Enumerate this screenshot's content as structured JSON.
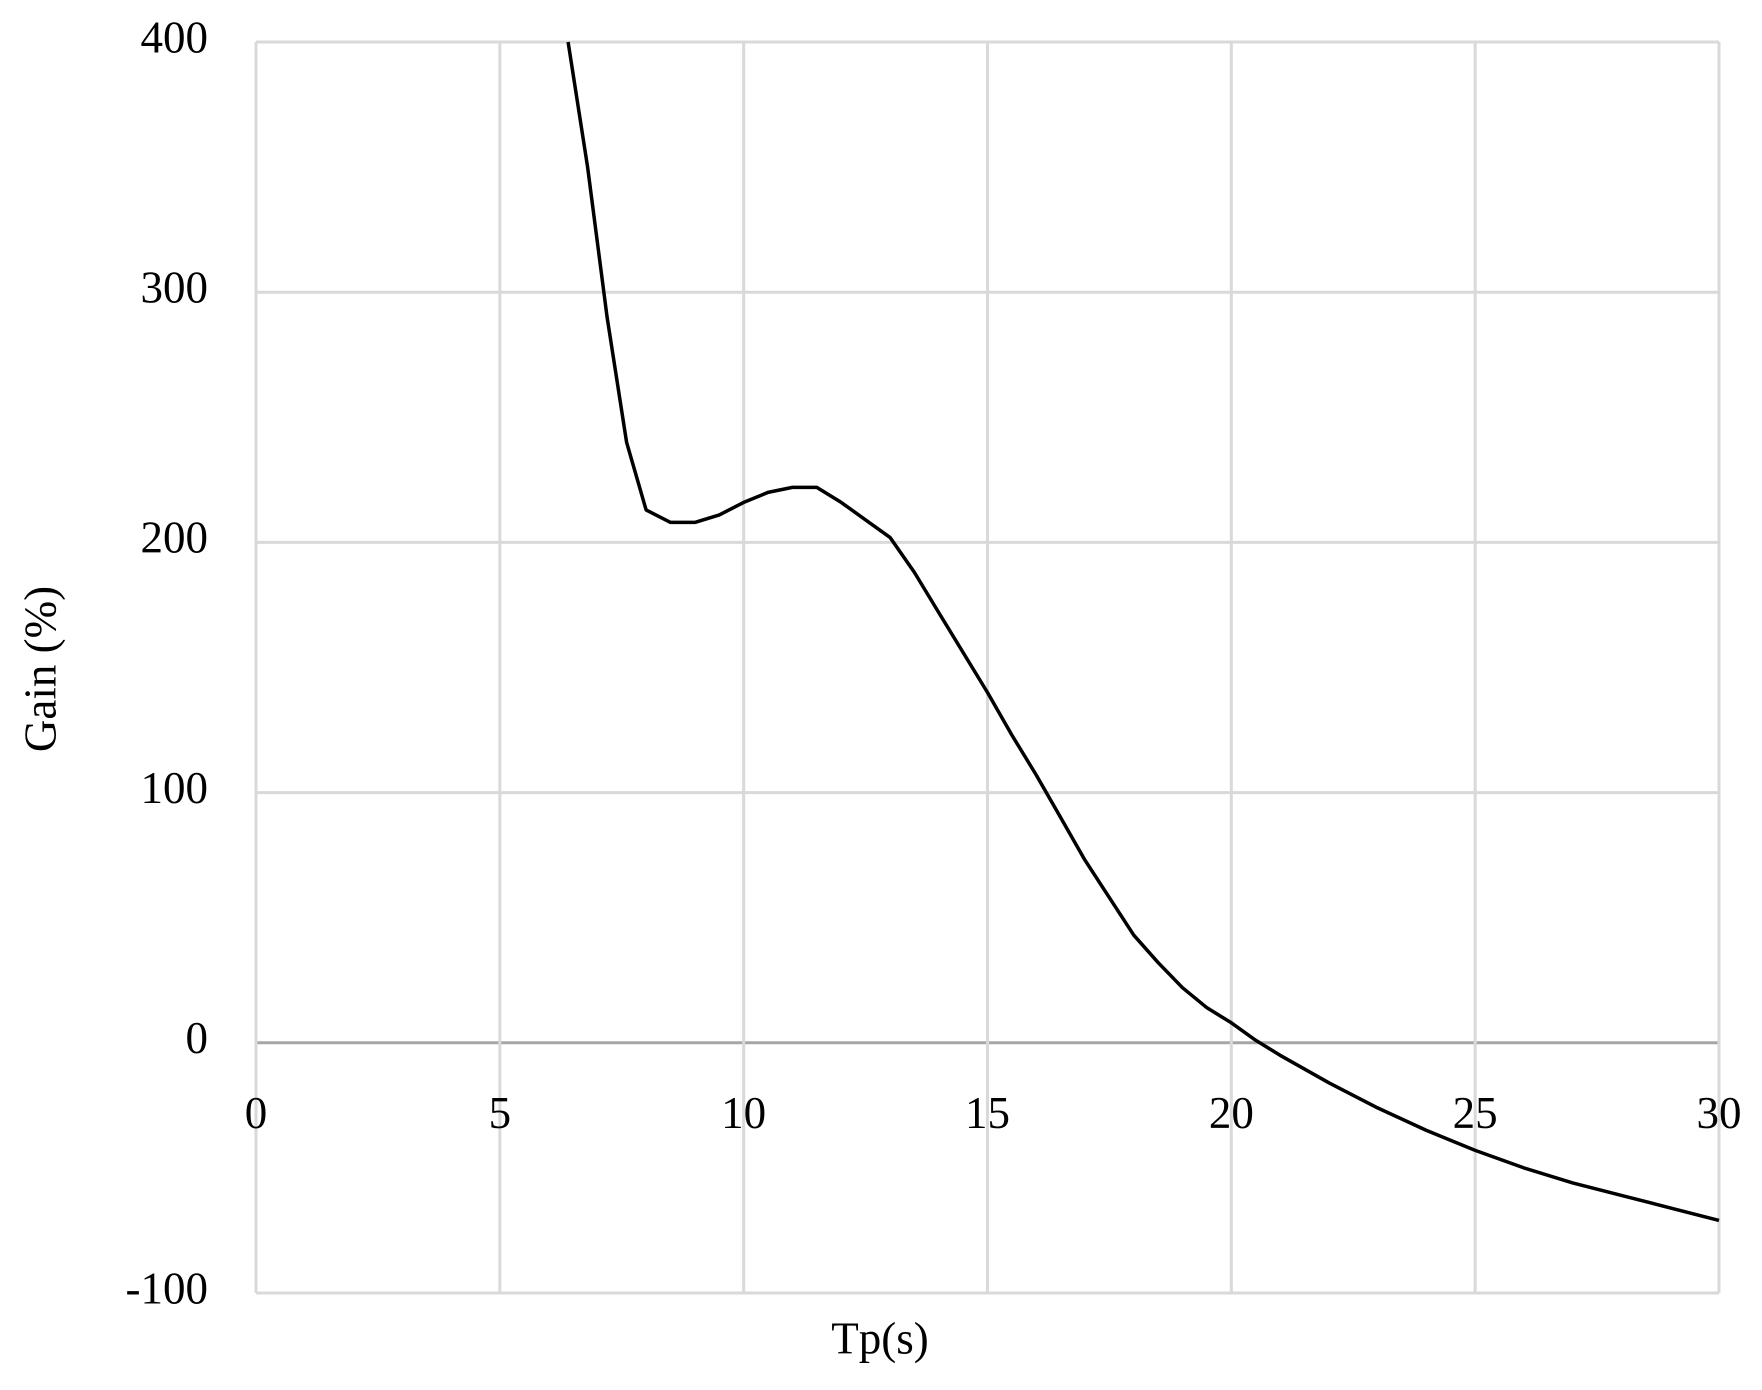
{
  "chart_data": {
    "type": "line",
    "x_label": "Tp(s)",
    "y_label": "Gain (%)",
    "x": [
      6.4,
      6.8,
      7.2,
      7.6,
      8.0,
      8.5,
      9.0,
      9.5,
      10,
      10.5,
      11,
      11.5,
      12,
      12.5,
      13,
      13.5,
      14,
      14.5,
      15,
      15.5,
      16,
      16.5,
      17,
      17.5,
      18,
      18.5,
      19,
      19.5,
      20,
      20.5,
      21,
      22,
      23,
      24,
      25,
      26,
      27,
      28,
      29,
      30
    ],
    "series": [
      {
        "color": "#000000",
        "values": [
          400,
          350,
          290,
          240,
          213,
          208,
          208,
          211,
          216,
          220,
          222,
          222,
          216,
          209,
          202,
          188,
          172,
          156,
          140,
          123,
          107,
          90,
          73,
          58,
          43,
          32,
          22,
          14,
          8,
          1,
          -5,
          -16,
          -26,
          -35,
          -43,
          -50,
          -56,
          -61,
          -66,
          -71
        ]
      }
    ],
    "xlim": [
      0,
      30
    ],
    "xticks": [
      0,
      5,
      10,
      15,
      20,
      25,
      30
    ],
    "ylim": [
      -100,
      400
    ],
    "yticks": [
      -100,
      0,
      100,
      200,
      300,
      400
    ],
    "grid": true
  }
}
